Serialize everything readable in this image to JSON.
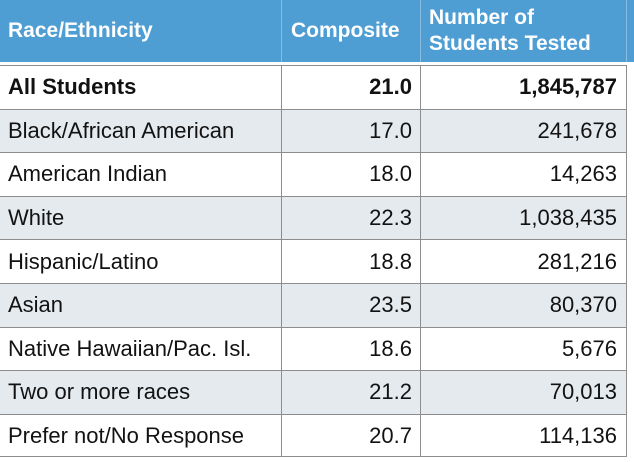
{
  "header": {
    "race_ethnicity": "Race/Ethnicity",
    "composite": "Composite",
    "students_tested": "Number of\nStudents Tested"
  },
  "rows": [
    {
      "race": "All Students",
      "composite": "21.0",
      "tested": "1,845,787",
      "emphasis": "bold"
    },
    {
      "race": "Black/African American",
      "composite": "17.0",
      "tested": "241,678"
    },
    {
      "race": "American Indian",
      "composite": "18.0",
      "tested": "14,263"
    },
    {
      "race": "White",
      "composite": "22.3",
      "tested": "1,038,435"
    },
    {
      "race": "Hispanic/Latino",
      "composite": "18.8",
      "tested": "281,216"
    },
    {
      "race": "Asian",
      "composite": "23.5",
      "tested": "80,370"
    },
    {
      "race": "Native Hawaiian/Pac. Isl.",
      "composite": "18.6",
      "tested": "5,676"
    },
    {
      "race": "Two or more races",
      "composite": "21.2",
      "tested": "70,013"
    },
    {
      "race": "Prefer not/No Response",
      "composite": "20.7",
      "tested": "114,136"
    }
  ],
  "colors": {
    "header_bg": "#4F9ED3",
    "header_text": "#FFFFFF",
    "header_divider": "#88BEE2",
    "grid_border": "#8D8D8D",
    "row_bg": "#FFFFFF",
    "row_alt_bg": "#E5EAEE",
    "body_text": "#121212"
  },
  "chart_data": {
    "type": "table",
    "columns": [
      "Race/Ethnicity",
      "Composite",
      "Number of Students Tested"
    ],
    "rows": [
      [
        "All Students",
        21.0,
        1845787
      ],
      [
        "Black/African American",
        17.0,
        241678
      ],
      [
        "American Indian",
        18.0,
        14263
      ],
      [
        "White",
        22.3,
        1038435
      ],
      [
        "Hispanic/Latino",
        18.8,
        281216
      ],
      [
        "Asian",
        23.5,
        80370
      ],
      [
        "Native Hawaiian/Pac. Isl.",
        18.6,
        5676
      ],
      [
        "Two or more races",
        21.2,
        70013
      ],
      [
        "Prefer not/No Response",
        20.7,
        114136
      ]
    ],
    "notes": "ACT composite score and number of students tested by race/ethnicity; 'All Students' row is bold; rows alternate white and light blue-gray shading"
  }
}
